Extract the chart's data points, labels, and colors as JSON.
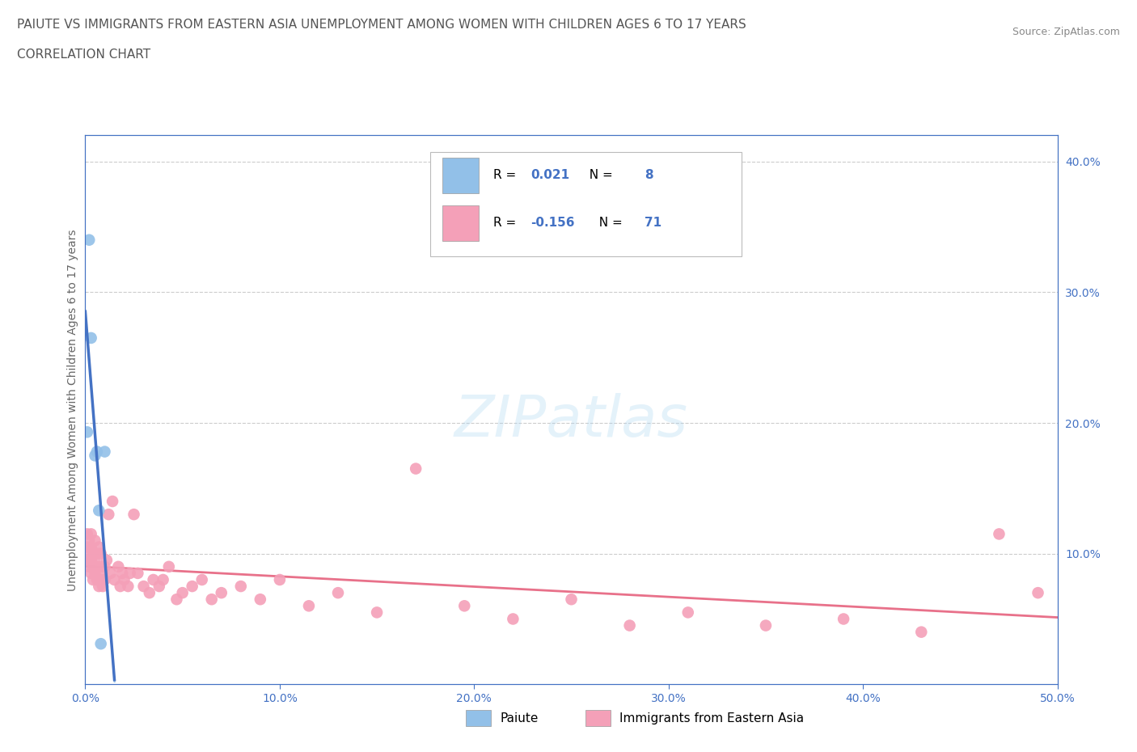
{
  "title_line1": "PAIUTE VS IMMIGRANTS FROM EASTERN ASIA UNEMPLOYMENT AMONG WOMEN WITH CHILDREN AGES 6 TO 17 YEARS",
  "title_line2": "CORRELATION CHART",
  "source_text": "Source: ZipAtlas.com",
  "watermark": "ZIPatlas",
  "ylabel": "Unemployment Among Women with Children Ages 6 to 17 years",
  "xmin": 0.0,
  "xmax": 0.5,
  "ymin": 0.0,
  "ymax": 0.42,
  "xtick_vals": [
    0.0,
    0.1,
    0.2,
    0.3,
    0.4,
    0.5
  ],
  "xtick_labels": [
    "0.0%",
    "10.0%",
    "20.0%",
    "30.0%",
    "40.0%",
    "50.0%"
  ],
  "ytick_right_vals": [
    0.1,
    0.2,
    0.3,
    0.4
  ],
  "ytick_right_labels": [
    "10.0%",
    "20.0%",
    "30.0%",
    "40.0%"
  ],
  "paiute_color": "#92c0e8",
  "eastern_asia_color": "#f4a0b8",
  "paiute_line_color": "#4472c4",
  "eastern_asia_line_color": "#e8718a",
  "paiute_R": 0.021,
  "paiute_N": 8,
  "eastern_asia_R": -0.156,
  "eastern_asia_N": 71,
  "legend_label_paiute": "Paiute",
  "legend_label_eastern": "Immigrants from Eastern Asia",
  "paiute_x": [
    0.001,
    0.002,
    0.003,
    0.005,
    0.006,
    0.007,
    0.008,
    0.01
  ],
  "paiute_y": [
    0.193,
    0.34,
    0.265,
    0.175,
    0.178,
    0.133,
    0.031,
    0.178
  ],
  "eastern_asia_x": [
    0.001,
    0.001,
    0.001,
    0.002,
    0.002,
    0.002,
    0.002,
    0.003,
    0.003,
    0.003,
    0.003,
    0.004,
    0.004,
    0.004,
    0.005,
    0.005,
    0.005,
    0.006,
    0.006,
    0.006,
    0.007,
    0.007,
    0.008,
    0.008,
    0.008,
    0.009,
    0.009,
    0.01,
    0.01,
    0.011,
    0.012,
    0.013,
    0.014,
    0.015,
    0.017,
    0.018,
    0.019,
    0.02,
    0.022,
    0.023,
    0.025,
    0.027,
    0.03,
    0.033,
    0.035,
    0.038,
    0.04,
    0.043,
    0.047,
    0.05,
    0.055,
    0.06,
    0.065,
    0.07,
    0.08,
    0.09,
    0.1,
    0.115,
    0.13,
    0.15,
    0.17,
    0.195,
    0.22,
    0.25,
    0.28,
    0.31,
    0.35,
    0.39,
    0.43,
    0.47,
    0.49
  ],
  "eastern_asia_y": [
    0.115,
    0.095,
    0.105,
    0.09,
    0.1,
    0.11,
    0.095,
    0.085,
    0.095,
    0.105,
    0.115,
    0.08,
    0.09,
    0.1,
    0.085,
    0.095,
    0.11,
    0.08,
    0.09,
    0.1,
    0.075,
    0.105,
    0.08,
    0.09,
    0.1,
    0.075,
    0.085,
    0.08,
    0.09,
    0.095,
    0.13,
    0.085,
    0.14,
    0.08,
    0.09,
    0.075,
    0.085,
    0.08,
    0.075,
    0.085,
    0.13,
    0.085,
    0.075,
    0.07,
    0.08,
    0.075,
    0.08,
    0.09,
    0.065,
    0.07,
    0.075,
    0.08,
    0.065,
    0.07,
    0.075,
    0.065,
    0.08,
    0.06,
    0.07,
    0.055,
    0.165,
    0.06,
    0.05,
    0.065,
    0.045,
    0.055,
    0.045,
    0.05,
    0.04,
    0.115,
    0.07
  ],
  "background_color": "#ffffff",
  "plot_bg_color": "#ffffff",
  "grid_color": "#cccccc",
  "title_color": "#555555",
  "axis_color": "#4472c4",
  "legend_text_color": "#333333",
  "r_value_color": "#4472c4"
}
